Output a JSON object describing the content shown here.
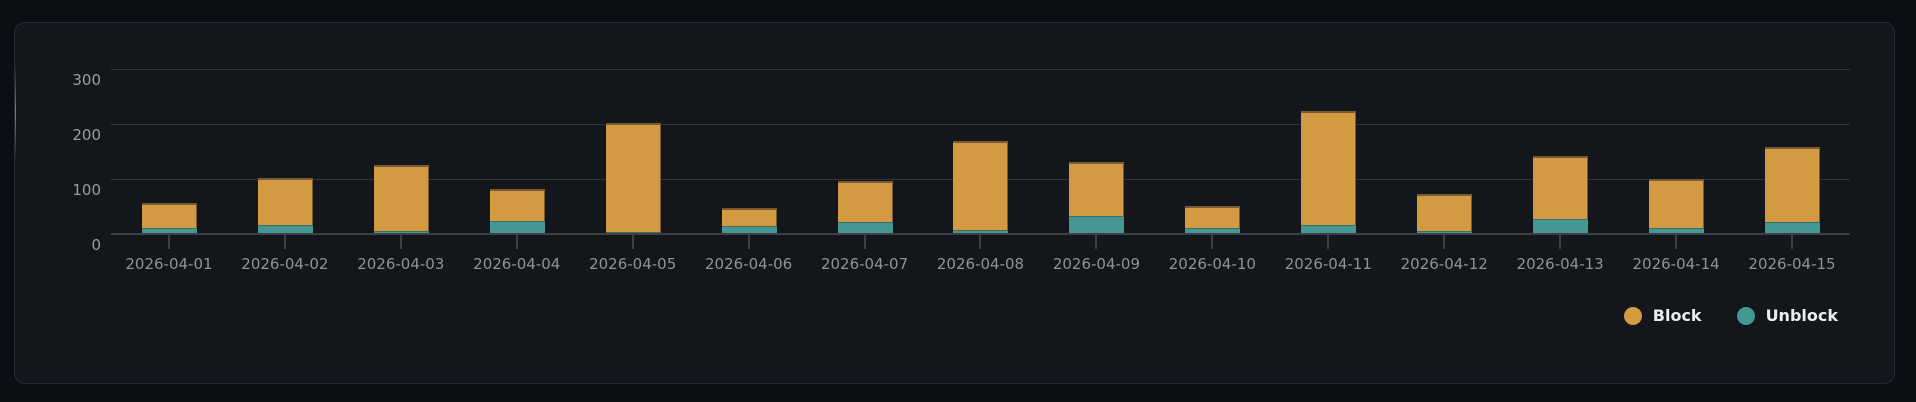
{
  "legend": {
    "items": [
      {
        "label": "Block",
        "color": "#d49a42"
      },
      {
        "label": "Unblock",
        "color": "#459794"
      }
    ]
  },
  "y_axis": {
    "ticks": [
      "300",
      "200",
      "100",
      "0"
    ]
  },
  "x_axis": {
    "ticks": [
      "2026-04-01",
      "2026-04-02",
      "2026-04-03",
      "2026-04-04",
      "2026-04-05",
      "2026-04-06",
      "2026-04-07",
      "2026-04-08",
      "2026-04-09",
      "2026-04-10",
      "2026-04-11",
      "2026-04-12",
      "2026-04-13",
      "2026-04-14",
      "2026-04-15"
    ]
  },
  "chart_data": {
    "type": "bar",
    "stacked": true,
    "title": "",
    "xlabel": "",
    "ylabel": "",
    "ylim": [
      0,
      300
    ],
    "yticks": [
      0,
      100,
      200,
      300
    ],
    "grid": true,
    "legend_position": "bottom-right",
    "categories": [
      "2026-04-01",
      "2026-04-02",
      "2026-04-03",
      "2026-04-04",
      "2026-04-05",
      "2026-04-06",
      "2026-04-07",
      "2026-04-08",
      "2026-04-09",
      "2026-04-10",
      "2026-04-11",
      "2026-04-12",
      "2026-04-13",
      "2026-04-14",
      "2026-04-15"
    ],
    "series": [
      {
        "name": "Unblock",
        "color": "#459794",
        "values": [
          10,
          15,
          4,
          22,
          0,
          12,
          20,
          6,
          31,
          10,
          15,
          4,
          26,
          10,
          20
        ]
      },
      {
        "name": "Block",
        "color": "#d49a42",
        "values": [
          45,
          85,
          120,
          58,
          200,
          33,
          74,
          161,
          98,
          40,
          207,
          67,
          114,
          89,
          136
        ]
      }
    ]
  }
}
